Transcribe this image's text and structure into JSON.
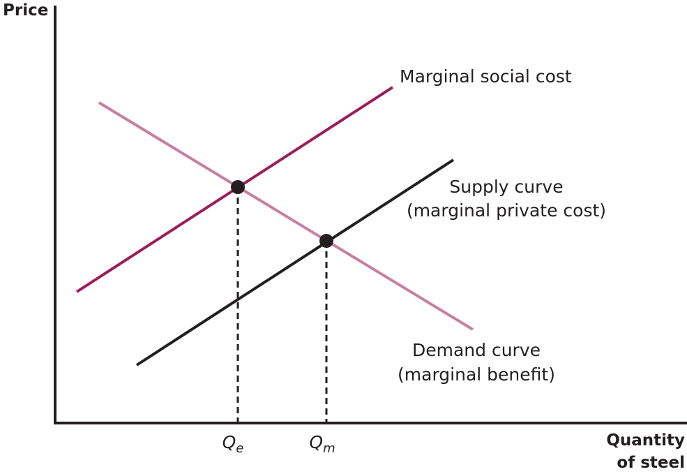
{
  "axes": {
    "y_label": "Price",
    "x_label": [
      "Quantity",
      "of steel"
    ]
  },
  "curves": [
    {
      "label": "Marginal social cost"
    },
    {
      "label": [
        "Supply curve",
        "(marginal private cost)"
      ]
    },
    {
      "label": [
        "Demand curve",
        "(marginal benefit)"
      ]
    }
  ],
  "quantities": [
    {
      "symbol": "Q",
      "subscript": "e"
    },
    {
      "symbol": "Q",
      "subscript": "m"
    }
  ]
}
